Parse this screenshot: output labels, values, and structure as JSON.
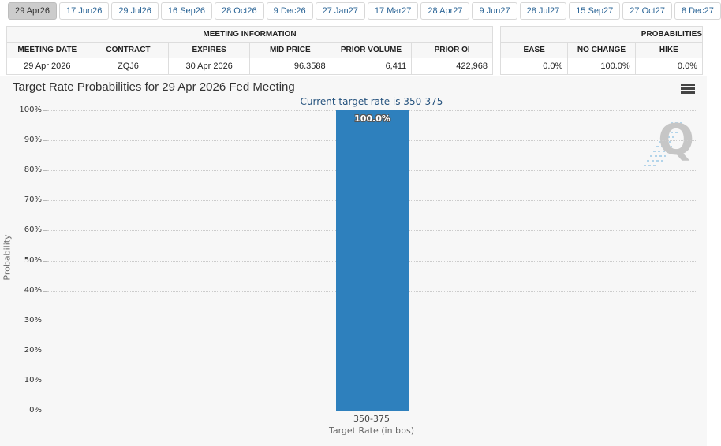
{
  "tabs": {
    "items": [
      {
        "label": "29 Apr26",
        "selected": true
      },
      {
        "label": "17 Jun26",
        "selected": false
      },
      {
        "label": "29 Jul26",
        "selected": false
      },
      {
        "label": "16 Sep26",
        "selected": false
      },
      {
        "label": "28 Oct26",
        "selected": false
      },
      {
        "label": "9 Dec26",
        "selected": false
      },
      {
        "label": "27 Jan27",
        "selected": false
      },
      {
        "label": "17 Mar27",
        "selected": false
      },
      {
        "label": "28 Apr27",
        "selected": false
      },
      {
        "label": "9 Jun27",
        "selected": false
      },
      {
        "label": "28 Jul27",
        "selected": false
      },
      {
        "label": "15 Sep27",
        "selected": false
      },
      {
        "label": "27 Oct27",
        "selected": false
      },
      {
        "label": "8 Dec27",
        "selected": false
      }
    ]
  },
  "meeting_info": {
    "title": "MEETING INFORMATION",
    "columns": [
      "MEETING DATE",
      "CONTRACT",
      "EXPIRES",
      "MID PRICE",
      "PRIOR VOLUME",
      "PRIOR OI"
    ],
    "row": [
      "29 Apr 2026",
      "ZQJ6",
      "30 Apr 2026",
      "96.3588",
      "6,411",
      "422,968"
    ]
  },
  "probabilities": {
    "title": "PROBABILITIES",
    "columns": [
      "EASE",
      "NO CHANGE",
      "HIKE"
    ],
    "row": [
      "0.0%",
      "100.0%",
      "0.0%"
    ]
  },
  "chart": {
    "title": "Target Rate Probabilities for 29 Apr 2026 Fed Meeting",
    "subtitle": "Current target rate is 350-375",
    "menu_icon": "hamburger-menu-icon",
    "watermark_letter": "Q"
  },
  "chart_data": {
    "type": "bar",
    "title": "Target Rate Probabilities for 29 Apr 2026 Fed Meeting",
    "subtitle": "Current target rate is 350-375",
    "categories": [
      "350-375"
    ],
    "values": [
      100.0
    ],
    "value_labels": [
      "100.0%"
    ],
    "xlabel": "Target Rate (in bps)",
    "ylabel": "Probability",
    "ylim": [
      0,
      100
    ],
    "ytick_interval": 10,
    "ytick_labels": [
      "0%",
      "10%",
      "20%",
      "30%",
      "40%",
      "50%",
      "60%",
      "70%",
      "80%",
      "90%",
      "100%"
    ],
    "grid": "horizontal-dotted",
    "legend": "none",
    "bar_color": "#2e80bd"
  },
  "colors": {
    "accent_blue": "#2a6496",
    "bar_blue": "#2e80bd",
    "subtitle_blue": "#26537e",
    "chart_bg": "#f7f7f7",
    "selected_tab_bg": "#cccccc"
  }
}
